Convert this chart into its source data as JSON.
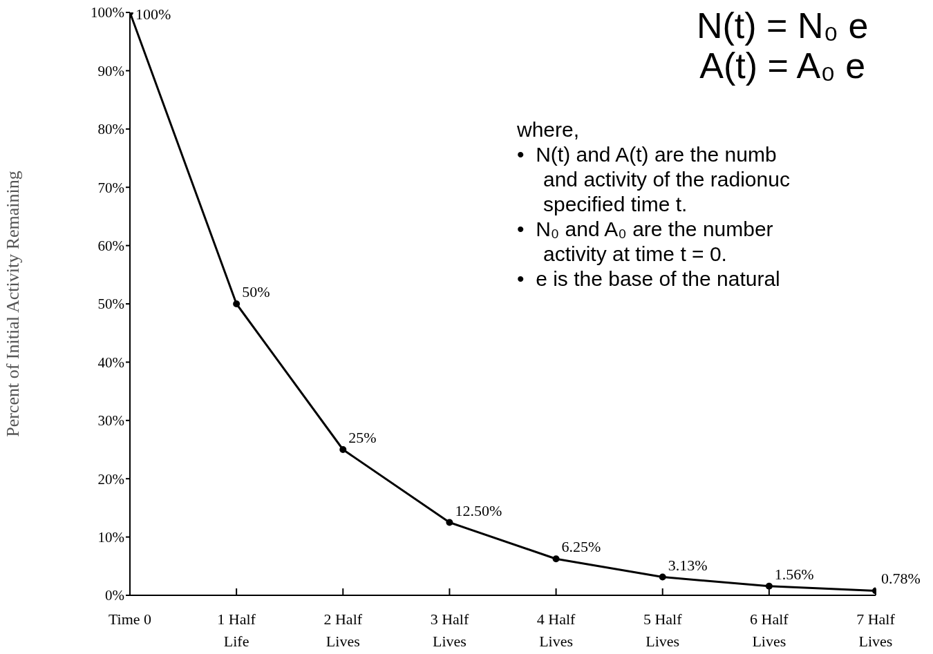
{
  "chart_data": {
    "type": "line",
    "ylabel": "Percent of Initial Activity Remaining",
    "categories": [
      "Time 0",
      "1 Half Life",
      "2 Half Lives",
      "3 Half Lives",
      "4 Half Lives",
      "5 Half Lives",
      "6 Half Lives",
      "7 Half Lives"
    ],
    "series": [
      {
        "color": "#000000",
        "values": [
          100,
          50,
          25,
          12.5,
          6.25,
          3.13,
          1.56,
          0.78
        ],
        "value_labels": [
          "100%",
          "50%",
          "25%",
          "12.50%",
          "6.25%",
          "3.13%",
          "1.56%",
          "0.78%"
        ]
      }
    ],
    "ylim": [
      0,
      100
    ],
    "yticks": [
      {
        "value": 0,
        "label": "0%"
      },
      {
        "value": 10,
        "label": "10%"
      },
      {
        "value": 20,
        "label": "20%"
      },
      {
        "value": 30,
        "label": "30%"
      },
      {
        "value": 40,
        "label": "40%"
      },
      {
        "value": 50,
        "label": "50%"
      },
      {
        "value": 60,
        "label": "60%"
      },
      {
        "value": 70,
        "label": "70%"
      },
      {
        "value": 80,
        "label": "80%"
      },
      {
        "value": 90,
        "label": "90%"
      },
      {
        "value": 100,
        "label": "100%"
      }
    ],
    "marker": "circle",
    "line_style": "solid",
    "grid": false,
    "annotations": [
      "N(t) = N₀ e",
      "A(t) = A₀ e",
      "where,",
      "•  N(t) and A(t) are the numb\nand activity of the radionuc\nspecified time t.",
      "•  N₀ and A₀ are the number\nactivity at time t = 0.",
      "•  e is the base of the natural"
    ]
  }
}
